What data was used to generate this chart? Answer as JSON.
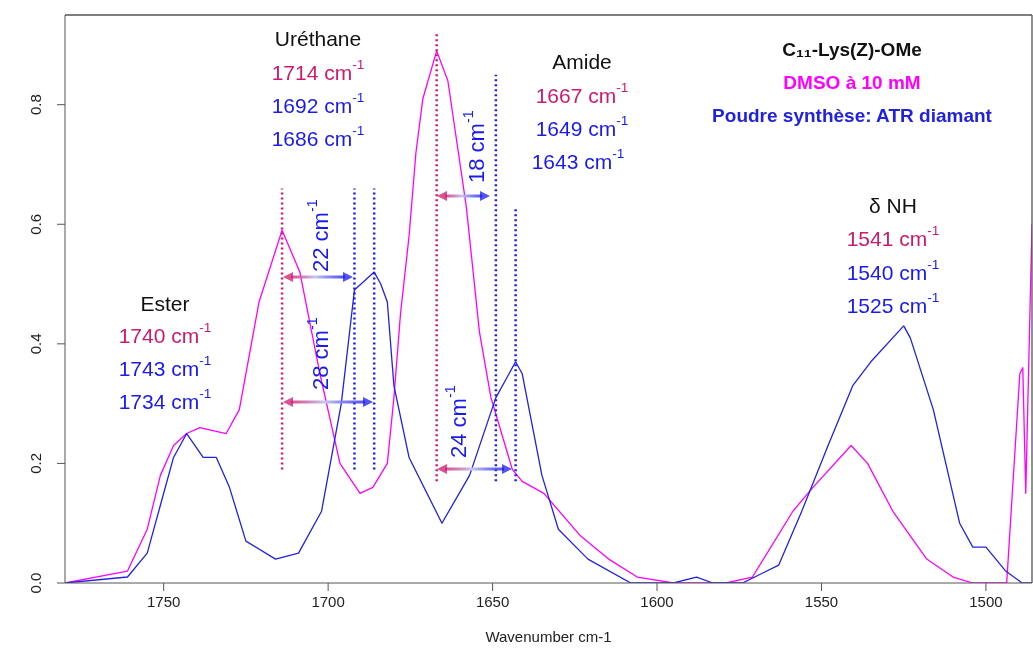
{
  "chart_data": {
    "type": "line",
    "xlabel": "Wavenumber cm-1",
    "legend_title": "C₁₁-Lys(Z)-OMe",
    "legend": "top right",
    "grid": false,
    "xlim": [
      1780,
      1486
    ],
    "xticks": [
      1750,
      1700,
      1650,
      1600,
      1550,
      1500
    ],
    "ylim": [
      0,
      0.95
    ],
    "yticks": [
      {
        "value": 0,
        "label": "0.0"
      },
      0.2,
      0.4,
      0.6,
      0.8
    ],
    "series": [
      {
        "name": "DMSO à 10 mM",
        "color": "#ff00ff",
        "x": [
          1780,
          1761,
          1755,
          1751,
          1747,
          1743,
          1739,
          1731,
          1727,
          1721,
          1714,
          1708.6,
          1702.5,
          1696.4,
          1690.3,
          1686.4,
          1682,
          1680,
          1678,
          1675.4,
          1673.3,
          1671.2,
          1667,
          1663.6,
          1658,
          1654,
          1650.5,
          1644,
          1641,
          1634.4,
          1623.5,
          1614.7,
          1606,
          1595,
          1579,
          1571,
          1558.7,
          1552.6,
          1541,
          1536,
          1528.3,
          1518,
          1510,
          1504,
          1493.7,
          1489.7,
          1488.8,
          1487.9,
          1486
        ],
        "values": [
          0,
          0.02,
          0.09,
          0.18,
          0.23,
          0.25,
          0.26,
          0.25,
          0.29,
          0.47,
          0.59,
          0.52,
          0.35,
          0.2,
          0.15,
          0.16,
          0.2,
          0.31,
          0.45,
          0.58,
          0.72,
          0.81,
          0.89,
          0.84,
          0.63,
          0.42,
          0.31,
          0.19,
          0.17,
          0.15,
          0.08,
          0.04,
          0.01,
          0,
          0,
          0.01,
          0.12,
          0.16,
          0.23,
          0.2,
          0.12,
          0.04,
          0.01,
          0,
          0,
          0.35,
          0.36,
          0.15,
          0.6
        ]
      },
      {
        "name": "Poudre synthèse: ATR diamant",
        "color": "#2222dd",
        "x": [
          1780,
          1761,
          1755,
          1751,
          1747,
          1743,
          1738,
          1734,
          1730,
          1725,
          1716,
          1709,
          1702,
          1696,
          1692,
          1686,
          1684,
          1682,
          1680,
          1675.4,
          1665.4,
          1657,
          1649,
          1643,
          1641,
          1635,
          1630,
          1621,
          1608,
          1595,
          1588,
          1583,
          1574,
          1563,
          1556,
          1548,
          1540.5,
          1535,
          1525,
          1523,
          1516,
          1508,
          1504,
          1500,
          1494,
          1489,
          1486
        ],
        "values": [
          0,
          0.01,
          0.05,
          0.13,
          0.21,
          0.25,
          0.21,
          0.21,
          0.16,
          0.07,
          0.04,
          0.05,
          0.12,
          0.3,
          0.49,
          0.52,
          0.5,
          0.47,
          0.33,
          0.21,
          0.1,
          0.18,
          0.31,
          0.37,
          0.35,
          0.18,
          0.09,
          0.04,
          0,
          0,
          0.01,
          0,
          0,
          0.03,
          0.12,
          0.23,
          0.33,
          0.37,
          0.43,
          0.41,
          0.29,
          0.1,
          0.06,
          0.06,
          0.02,
          0,
          0
        ]
      },
      {
        "type": "line",
        "line_style": "dotted",
        "color": "#cc1a6e",
        "x": [
          1714,
          1714
        ],
        "values": [
          0.19,
          0.66
        ]
      },
      {
        "type": "line",
        "line_style": "dotted",
        "color": "#1a1aee",
        "x": [
          1692,
          1692
        ],
        "values": [
          0.19,
          0.66
        ]
      },
      {
        "type": "line",
        "line_style": "dotted",
        "color": "#1a1aee",
        "x": [
          1686,
          1686
        ],
        "values": [
          0.19,
          0.66
        ]
      },
      {
        "type": "line",
        "line_style": "dotted",
        "color": "#cc1a6e",
        "x": [
          1667,
          1667
        ],
        "values": [
          0.17,
          0.92
        ]
      },
      {
        "type": "line",
        "line_style": "dotted",
        "color": "#1a1aee",
        "x": [
          1649,
          1649
        ],
        "values": [
          0.17,
          0.85
        ]
      },
      {
        "type": "line",
        "line_style": "dotted",
        "color": "#1a1aee",
        "x": [
          1643,
          1643
        ],
        "values": [
          0.17,
          0.63
        ]
      }
    ],
    "annotations": [
      "Ester",
      "1740 cm$^{-1}$",
      "1743 cm$^{-1}$",
      "1734 cm$^{-1}$",
      "Uréthane",
      "1714 cm$^{-1}$",
      "1692 cm$^{-1}$",
      "1686 cm$^{-1}$",
      "Amide",
      "1667 cm$^{-1}$",
      "1649 cm$^{-1}$",
      "1643 cm$^{-1}$",
      "δ NH",
      "1541 cm$^{-1}$",
      "1540 cm$^{-1}$",
      "1525 cm$^{-1}$",
      "22 cm$^{-1}$",
      "28 cm$^{-1}$",
      "18 cm$^{-1}$",
      "24 cm$^{-1}$"
    ]
  }
}
